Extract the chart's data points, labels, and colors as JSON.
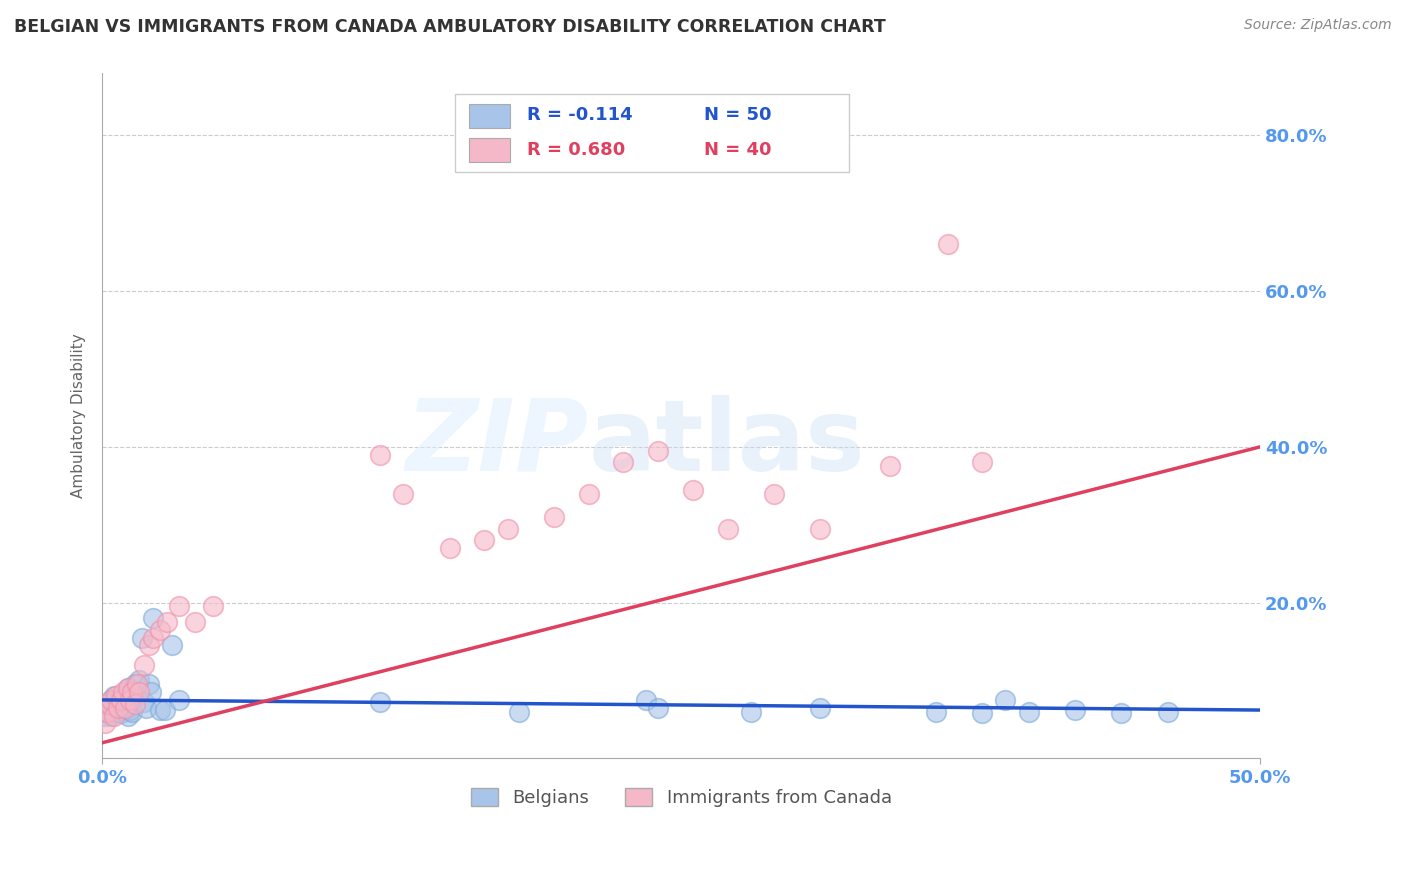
{
  "title": "BELGIAN VS IMMIGRANTS FROM CANADA AMBULATORY DISABILITY CORRELATION CHART",
  "source": "Source: ZipAtlas.com",
  "ylabel": "Ambulatory Disability",
  "xlim": [
    0.0,
    0.5
  ],
  "ylim": [
    0.0,
    0.88
  ],
  "yticks": [
    0.2,
    0.4,
    0.6,
    0.8
  ],
  "ytick_labels": [
    "20.0%",
    "40.0%",
    "60.0%",
    "80.0%"
  ],
  "xtick_labels": [
    "0.0%",
    "50.0%"
  ],
  "legend_r1": "R = -0.114",
  "legend_n1": "N = 50",
  "legend_r2": "R = 0.680",
  "legend_n2": "N = 40",
  "belgian_color": "#a8c4e8",
  "immigrant_color": "#f5b8c8",
  "belgian_edge_color": "#7aaad8",
  "immigrant_edge_color": "#f090a8",
  "belgian_line_color": "#2255cc",
  "immigrant_line_color": "#e04060",
  "background_color": "#ffffff",
  "grid_color": "#cccccc",
  "title_color": "#333333",
  "axis_label_color": "#5599ee",
  "watermark": "ZIPAtlas",
  "belgian_x": [
    0.001,
    0.002,
    0.003,
    0.003,
    0.004,
    0.004,
    0.005,
    0.005,
    0.006,
    0.006,
    0.007,
    0.007,
    0.008,
    0.008,
    0.009,
    0.009,
    0.01,
    0.01,
    0.011,
    0.011,
    0.012,
    0.012,
    0.013,
    0.013,
    0.014,
    0.015,
    0.016,
    0.017,
    0.018,
    0.019,
    0.02,
    0.021,
    0.022,
    0.025,
    0.027,
    0.03,
    0.033,
    0.12,
    0.18,
    0.235,
    0.24,
    0.28,
    0.31,
    0.36,
    0.38,
    0.39,
    0.4,
    0.42,
    0.44,
    0.46
  ],
  "belgian_y": [
    0.055,
    0.06,
    0.07,
    0.065,
    0.055,
    0.075,
    0.06,
    0.08,
    0.065,
    0.075,
    0.06,
    0.068,
    0.072,
    0.058,
    0.065,
    0.078,
    0.07,
    0.082,
    0.055,
    0.09,
    0.062,
    0.075,
    0.085,
    0.06,
    0.095,
    0.08,
    0.1,
    0.155,
    0.072,
    0.065,
    0.095,
    0.085,
    0.18,
    0.062,
    0.062,
    0.145,
    0.075,
    0.072,
    0.06,
    0.075,
    0.065,
    0.06,
    0.065,
    0.06,
    0.058,
    0.075,
    0.06,
    0.062,
    0.058,
    0.06
  ],
  "immigrant_x": [
    0.001,
    0.002,
    0.003,
    0.004,
    0.005,
    0.006,
    0.007,
    0.008,
    0.009,
    0.01,
    0.011,
    0.012,
    0.013,
    0.014,
    0.015,
    0.016,
    0.018,
    0.02,
    0.022,
    0.025,
    0.028,
    0.033,
    0.04,
    0.048,
    0.12,
    0.13,
    0.15,
    0.165,
    0.175,
    0.195,
    0.21,
    0.225,
    0.24,
    0.255,
    0.27,
    0.29,
    0.31,
    0.34,
    0.365,
    0.38
  ],
  "immigrant_y": [
    0.045,
    0.06,
    0.07,
    0.075,
    0.055,
    0.08,
    0.065,
    0.075,
    0.085,
    0.065,
    0.09,
    0.075,
    0.085,
    0.07,
    0.095,
    0.085,
    0.12,
    0.145,
    0.155,
    0.165,
    0.175,
    0.195,
    0.175,
    0.195,
    0.39,
    0.34,
    0.27,
    0.28,
    0.295,
    0.31,
    0.34,
    0.38,
    0.395,
    0.345,
    0.295,
    0.34,
    0.295,
    0.375,
    0.66,
    0.38
  ],
  "immigrant_line_start_y": 0.02,
  "immigrant_line_end_y": 0.4,
  "belgian_line_start_y": 0.075,
  "belgian_line_end_y": 0.062
}
